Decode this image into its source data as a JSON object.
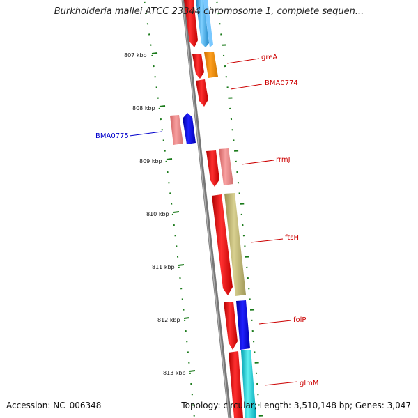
{
  "title": "Burkholderia mallei ATCC 23344 chromosome 1, complete sequen...",
  "footer": {
    "accession": "Accession: NC_006348",
    "stats": "Topology: circular; Length: 3,510,148 bp; Genes: 3,047"
  },
  "ticks": [
    "807 kbp",
    "808 kbp",
    "809 kbp",
    "810 kbp",
    "811 kbp",
    "812 kbp",
    "813 kbp"
  ],
  "colors": {
    "backbone": "#888888",
    "tick": "#1a7a1a",
    "label_forward": "#cc0000",
    "label_reverse": "#0000cc",
    "cds": "#ff0000",
    "rna": "#f08080",
    "blue": "#0000ff",
    "orange": "#ff8c00",
    "khaki": "#c0b870",
    "cyan": "#00c0d0",
    "lightblue": "#40a0e0"
  },
  "gene_labels": [
    {
      "name": "greA",
      "color": "#cc0000"
    },
    {
      "name": "BMA0774",
      "color": "#cc0000"
    },
    {
      "name": "BMA0775",
      "color": "#0000cc"
    },
    {
      "name": "rrmJ",
      "color": "#cc0000"
    },
    {
      "name": "ftsH",
      "color": "#cc0000"
    },
    {
      "name": "folP",
      "color": "#cc0000"
    },
    {
      "name": "glmM",
      "color": "#cc0000"
    }
  ]
}
